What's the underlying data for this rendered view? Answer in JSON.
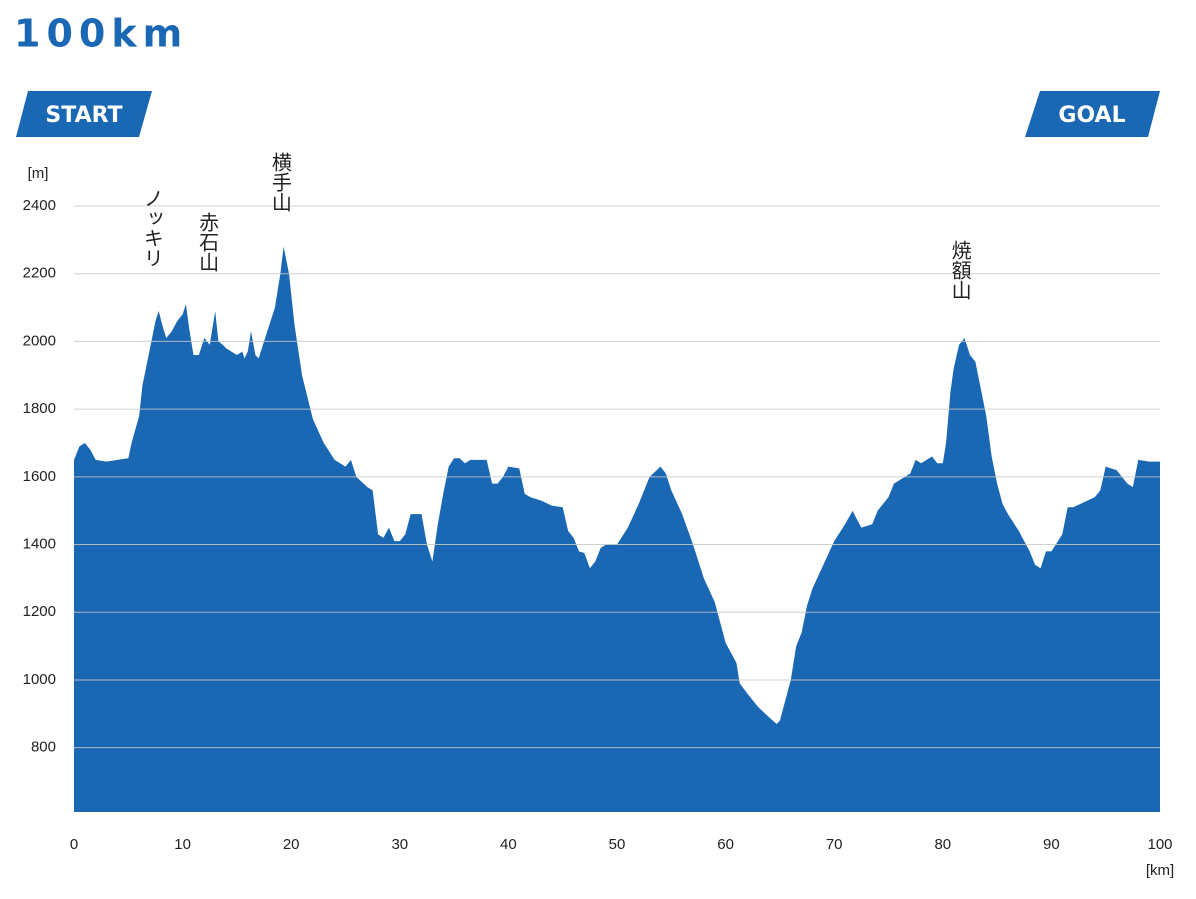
{
  "chart_data": {
    "type": "area",
    "title": "100km",
    "start_label": "START",
    "goal_label": "GOAL",
    "y_unit": "[m]",
    "x_unit": "[km]",
    "color": "#1a68b3",
    "grid": true,
    "xlim": [
      0,
      100
    ],
    "ylim": [
      610,
      2400
    ],
    "xticks": [
      0,
      10,
      20,
      30,
      40,
      50,
      60,
      70,
      80,
      90,
      100
    ],
    "yticks": [
      800,
      1000,
      1200,
      1400,
      1600,
      1800,
      2000,
      2200,
      2400
    ],
    "annotations": [
      {
        "text": "ノッキリ",
        "x": 7.2
      },
      {
        "text": "赤石山",
        "x": 12.3
      },
      {
        "text": "横手山",
        "x": 19
      },
      {
        "text": "焼額山",
        "x": 81.6
      }
    ],
    "x": [
      0,
      0.5,
      1,
      1.5,
      2,
      3,
      4,
      5,
      5.3,
      6,
      6.3,
      7,
      7.5,
      7.8,
      8.2,
      8.5,
      9,
      9.5,
      10,
      10.3,
      10.6,
      11,
      11.5,
      12,
      12.5,
      13,
      13.3,
      13.7,
      14,
      14.5,
      15,
      15.5,
      15.7,
      16,
      16.3,
      16.7,
      17,
      17.5,
      18,
      18.5,
      19,
      19.3,
      19.8,
      20.3,
      21,
      22,
      23,
      24,
      25,
      25.5,
      26,
      27,
      27.5,
      28,
      28.5,
      29,
      29.5,
      30,
      30.5,
      31,
      32,
      32.5,
      33,
      33.5,
      34,
      34.5,
      35,
      35.5,
      36,
      36.5,
      37,
      38,
      38.5,
      39,
      39.5,
      40,
      41,
      41.5,
      42,
      43,
      44,
      45,
      45.5,
      46,
      46.5,
      47,
      47.5,
      48,
      48.5,
      49,
      50,
      51,
      52,
      53,
      54,
      54.5,
      55,
      56,
      57,
      58,
      59,
      60,
      61,
      61.3,
      62,
      63,
      64,
      64.7,
      65,
      66,
      66.5,
      67,
      67.5,
      68,
      69,
      70,
      71,
      71.7,
      72,
      72.5,
      73.5,
      74,
      75,
      75.5,
      76,
      77,
      77.5,
      78,
      78.5,
      79,
      79.5,
      80,
      80.3,
      80.7,
      81,
      81.5,
      82,
      82.5,
      83,
      84,
      84.5,
      85,
      85.5,
      86,
      87,
      88,
      88.5,
      89,
      89.5,
      90,
      91,
      91.5,
      92,
      93,
      94,
      94.5,
      95,
      96,
      96.5,
      97,
      97.5,
      98,
      99,
      100
    ],
    "values": [
      1650,
      1690,
      1700,
      1680,
      1650,
      1645,
      1650,
      1655,
      1700,
      1780,
      1870,
      1980,
      2060,
      2090,
      2040,
      2010,
      2030,
      2060,
      2080,
      2110,
      2040,
      1960,
      1960,
      2010,
      1990,
      2090,
      2000,
      1990,
      1980,
      1970,
      1960,
      1970,
      1950,
      1970,
      2030,
      1960,
      1950,
      2000,
      2050,
      2100,
      2200,
      2280,
      2200,
      2050,
      1900,
      1770,
      1700,
      1650,
      1630,
      1650,
      1600,
      1570,
      1560,
      1430,
      1420,
      1450,
      1410,
      1410,
      1430,
      1490,
      1490,
      1400,
      1350,
      1460,
      1550,
      1630,
      1655,
      1655,
      1640,
      1650,
      1650,
      1650,
      1580,
      1580,
      1600,
      1630,
      1625,
      1550,
      1540,
      1530,
      1515,
      1510,
      1440,
      1420,
      1380,
      1375,
      1330,
      1350,
      1390,
      1400,
      1400,
      1450,
      1520,
      1600,
      1630,
      1610,
      1560,
      1490,
      1400,
      1300,
      1230,
      1110,
      1050,
      990,
      960,
      920,
      890,
      870,
      880,
      1000,
      1100,
      1140,
      1220,
      1270,
      1340,
      1410,
      1460,
      1500,
      1480,
      1450,
      1460,
      1500,
      1540,
      1580,
      1590,
      1610,
      1650,
      1640,
      1650,
      1660,
      1640,
      1640,
      1700,
      1850,
      1920,
      1990,
      2010,
      1960,
      1940,
      1780,
      1660,
      1580,
      1520,
      1490,
      1440,
      1380,
      1340,
      1330,
      1380,
      1380,
      1430,
      1510,
      1510,
      1525,
      1540,
      1560,
      1630,
      1620,
      1600,
      1580,
      1570,
      1650,
      1645,
      1645
    ]
  }
}
